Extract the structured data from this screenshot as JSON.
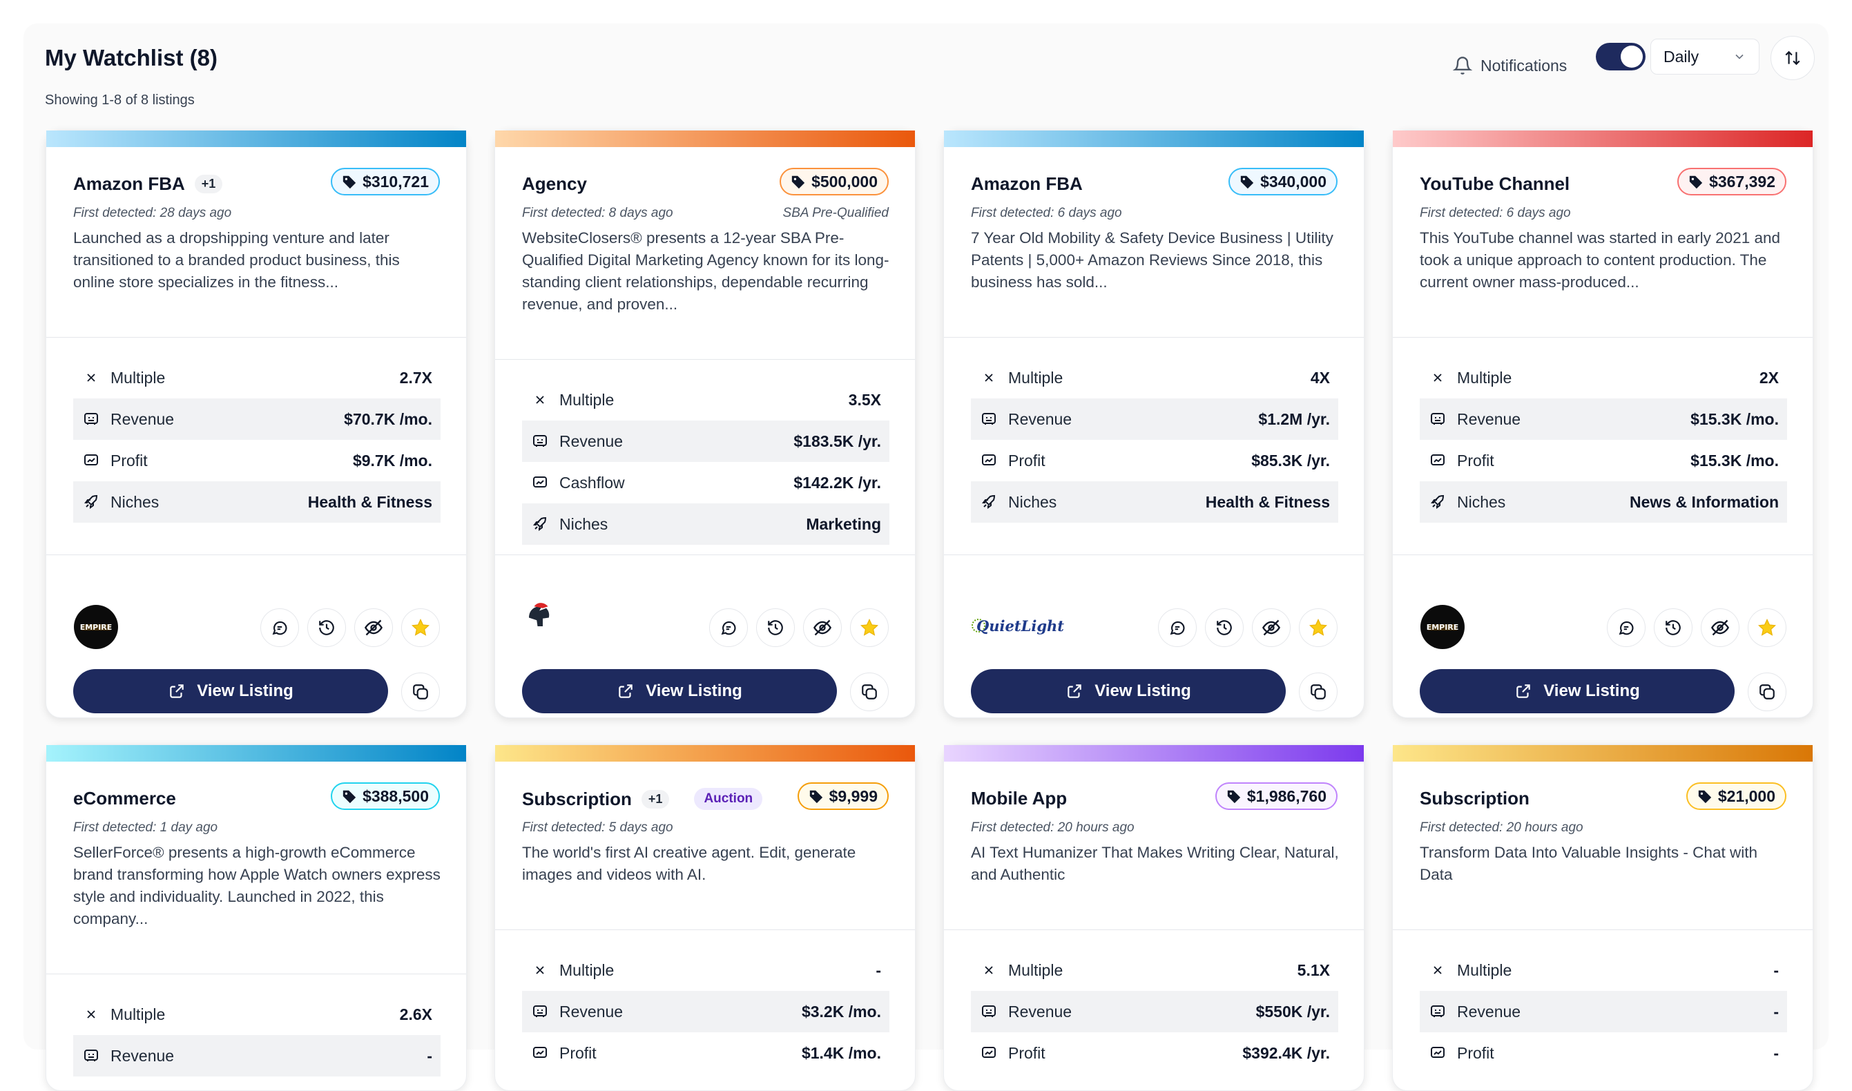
{
  "header": {
    "title": "My Watchlist (8)",
    "showing": "Showing 1-8 of 8 listings",
    "notifications_label": "Notifications",
    "notifications_on": true,
    "frequency_selected": "Daily"
  },
  "colors": {
    "navy": "#1e2a5e",
    "bar_blue": "#0ea5e9",
    "bar_orange": "#f97316",
    "bar_red": "#ef4444",
    "bar_purple": "#a855f7",
    "bar_gold": "#d97706",
    "star": "#facc15"
  },
  "labels": {
    "view_listing": "View Listing",
    "multiple": "Multiple",
    "revenue": "Revenue",
    "profit": "Profit",
    "cashflow": "Cashflow",
    "niches": "Niches"
  },
  "cards": [
    {
      "name": "Amazon FBA",
      "extra": "+1",
      "price": "$310,721",
      "first_detected": "First detected: 28 days ago",
      "description": "Launched as a dropshipping venture and later transitioned to a branded product business, this online store specializes in the fitness...",
      "multiple": "2.7X",
      "revenue": "$70.7K /mo.",
      "profit": "$9.7K /mo.",
      "niches": "Health & Fitness",
      "logo": "EMPIRE"
    },
    {
      "name": "Agency",
      "price": "$500,000",
      "badge": "SBA Pre-Qualified",
      "first_detected": "First detected: 8 days ago",
      "description": "WebsiteClosers® presents a 12-year SBA Pre-Qualified Digital Marketing Agency known for its long-standing client relationships, dependable recurring revenue, and proven...",
      "multiple": "3.5X",
      "revenue": "$183.5K /yr.",
      "cashflow": "$142.2K /yr.",
      "niches": "Marketing",
      "logo": "helmet"
    },
    {
      "name": "Amazon FBA",
      "price": "$340,000",
      "first_detected": "First detected: 6 days ago",
      "description": "7 Year Old Mobility & Safety Device Business | Utility Patents | 5,000+ Amazon Reviews Since 2018, this business has sold...",
      "multiple": "4X",
      "revenue": "$1.2M /yr.",
      "profit": "$85.3K /yr.",
      "niches": "Health & Fitness",
      "logo": "QuietLight"
    },
    {
      "name": "YouTube Channel",
      "price": "$367,392",
      "first_detected": "First detected: 6 days ago",
      "description": "This YouTube channel was started in early 2021 and took a unique approach to content production. The current owner mass-produced...",
      "multiple": "2X",
      "revenue": "$15.3K /mo.",
      "profit": "$15.3K /mo.",
      "niches": "News & Information",
      "logo": "EMPIRE"
    },
    {
      "name": "eCommerce",
      "price": "$388,500",
      "first_detected": "First detected: 1 day ago",
      "description": "SellerForce® presents a high-growth eCommerce brand transforming how Apple Watch owners express style and individuality. Launched in 2022, this company...",
      "multiple": "2.6X",
      "revenue": "-"
    },
    {
      "name": "Subscription",
      "extra": "+1",
      "auction": "Auction",
      "price": "$9,999",
      "first_detected": "First detected: 5 days ago",
      "description": "The world's first AI creative agent. Edit, generate images and videos with AI.",
      "multiple": "-",
      "revenue": "$3.2K /mo.",
      "profit": "$1.4K /mo."
    },
    {
      "name": "Mobile App",
      "price": "$1,986,760",
      "first_detected": "First detected: 20 hours ago",
      "description": "AI Text Humanizer That Makes Writing Clear, Natural, and Authentic",
      "multiple": "5.1X",
      "revenue": "$550K /yr.",
      "profit": "$392.4K /yr."
    },
    {
      "name": "Subscription",
      "price": "$21,000",
      "first_detected": "First detected: 20 hours ago",
      "description": "Transform Data Into Valuable Insights - Chat with Data",
      "multiple": "-",
      "revenue": "-",
      "profit": "-"
    }
  ]
}
